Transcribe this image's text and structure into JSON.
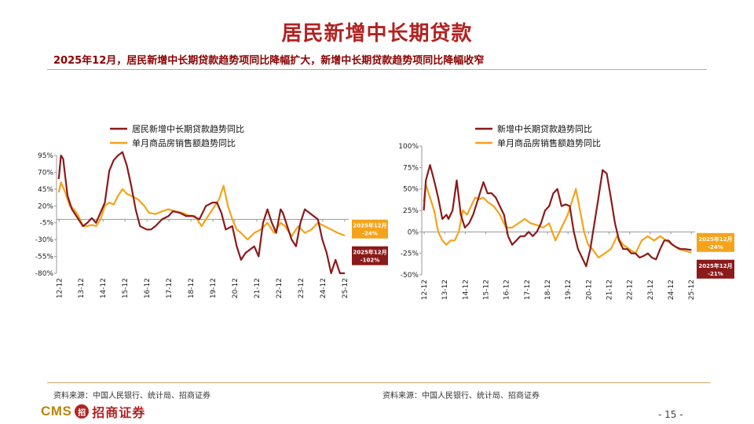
{
  "title": "居民新增中长期贷款",
  "subtitle": "2025年12月，居民新增中长期贷款趋势项同比降幅扩大，新增中长期贷款趋势项同比降幅收窄",
  "footer": {
    "source_left": "资料来源：中国人民银行、统计局、招商证券",
    "source_right": "资料来源：中国人民银行、统计局、招商证券",
    "logo_cms": "CMS",
    "logo_mark": "招",
    "logo_cn": "招商证券",
    "page_number": "- 15 -"
  },
  "colors": {
    "primary_series": "#8b1a1a",
    "secondary_series": "#f5a31a",
    "axis": "#999999"
  },
  "chart_data": [
    {
      "type": "line",
      "title": "",
      "xlabel": "",
      "ylabel": "",
      "ylim": [
        -80,
        95
      ],
      "yticks": [
        95,
        70,
        45,
        20,
        -5,
        -30,
        -55,
        -80
      ],
      "ytick_labels": [
        "95%",
        "70%",
        "45%",
        "20%",
        "-5%",
        "-30%",
        "-55%",
        "-80%"
      ],
      "xticks": [
        2012.917,
        2013.917,
        2014.917,
        2015.917,
        2016.917,
        2017.917,
        2018.917,
        2019.917,
        2020.917,
        2021.917,
        2022.917,
        2023.917,
        2024.917,
        2025.917
      ],
      "xtick_labels": [
        "12-12",
        "13-12",
        "14-12",
        "15-12",
        "16-12",
        "17-12",
        "18-12",
        "19-12",
        "20-12",
        "21-12",
        "22-12",
        "23-12",
        "24-12",
        "25-12"
      ],
      "grid": false,
      "legend_position": "top-left",
      "series": [
        {
          "name": "居民新增中长期贷款趋势同比",
          "color": "#8b1a1a",
          "x": [
            2012.9,
            2013.0,
            2013.1,
            2013.3,
            2013.5,
            2013.8,
            2014.0,
            2014.2,
            2014.4,
            2014.6,
            2014.8,
            2015.0,
            2015.2,
            2015.4,
            2015.6,
            2015.8,
            2016.0,
            2016.2,
            2016.4,
            2016.6,
            2016.9,
            2017.1,
            2017.3,
            2017.6,
            2017.9,
            2018.1,
            2018.4,
            2018.7,
            2019.0,
            2019.3,
            2019.6,
            2019.9,
            2020.1,
            2020.3,
            2020.5,
            2020.8,
            2021.0,
            2021.2,
            2021.4,
            2021.6,
            2021.8,
            2022.0,
            2022.2,
            2022.4,
            2022.6,
            2022.8,
            2023.0,
            2023.1,
            2023.3,
            2023.5,
            2023.7,
            2023.9,
            2024.1,
            2024.3,
            2024.5,
            2024.7,
            2024.9,
            2025.1,
            2025.3,
            2025.5,
            2025.7,
            2025.92
          ],
          "values": [
            60,
            95,
            90,
            35,
            15,
            0,
            -10,
            -5,
            2,
            -5,
            10,
            25,
            72,
            88,
            95,
            100,
            80,
            50,
            15,
            -10,
            -15,
            -15,
            -10,
            0,
            5,
            12,
            10,
            5,
            5,
            0,
            20,
            25,
            25,
            10,
            -15,
            -10,
            -40,
            -60,
            -50,
            -45,
            -40,
            -55,
            -5,
            15,
            -5,
            -20,
            15,
            10,
            -10,
            -30,
            -40,
            -5,
            15,
            10,
            5,
            0,
            -30,
            -50,
            -80,
            -60,
            -90,
            -102
          ]
        },
        {
          "name": "单月商品房销售额趋势同比",
          "color": "#f5a31a",
          "x": [
            2012.9,
            2013.0,
            2013.2,
            2013.4,
            2013.6,
            2013.8,
            2014.0,
            2014.2,
            2014.4,
            2014.6,
            2014.8,
            2015.0,
            2015.2,
            2015.4,
            2015.6,
            2015.8,
            2016.0,
            2016.2,
            2016.5,
            2016.8,
            2017.0,
            2017.3,
            2017.6,
            2017.9,
            2018.2,
            2018.5,
            2018.8,
            2019.1,
            2019.4,
            2019.7,
            2020.0,
            2020.2,
            2020.4,
            2020.6,
            2020.8,
            2021.0,
            2021.2,
            2021.5,
            2021.8,
            2022.1,
            2022.4,
            2022.7,
            2023.0,
            2023.2,
            2023.5,
            2023.8,
            2024.1,
            2024.4,
            2024.7,
            2025.0,
            2025.3,
            2025.6,
            2025.92
          ],
          "values": [
            40,
            55,
            40,
            20,
            15,
            5,
            -10,
            -10,
            -8,
            -10,
            0,
            20,
            25,
            22,
            35,
            45,
            38,
            35,
            30,
            20,
            10,
            8,
            12,
            15,
            12,
            10,
            6,
            5,
            -10,
            5,
            20,
            30,
            50,
            20,
            0,
            -15,
            -20,
            -30,
            -20,
            -15,
            -5,
            -20,
            -5,
            -10,
            -25,
            -10,
            -20,
            -15,
            -5,
            -10,
            -15,
            -20,
            -24
          ]
        }
      ],
      "annotations": [
        {
          "label": "2025年12月",
          "value_label": "-24%",
          "color": "#f5a31a"
        },
        {
          "label": "2025年12月",
          "value_label": "-102%",
          "color": "#8b1a1a"
        }
      ]
    },
    {
      "type": "line",
      "title": "",
      "xlabel": "",
      "ylabel": "",
      "ylim": [
        -50,
        100
      ],
      "yticks": [
        100,
        75,
        50,
        25,
        0,
        -25,
        -50
      ],
      "ytick_labels": [
        "100%",
        "75%",
        "50%",
        "25%",
        "0%",
        "-25%",
        "-50%"
      ],
      "xticks": [
        2012.917,
        2013.917,
        2014.917,
        2015.917,
        2016.917,
        2017.917,
        2018.917,
        2019.917,
        2020.917,
        2021.917,
        2022.917,
        2023.917,
        2024.917,
        2025.917
      ],
      "xtick_labels": [
        "12-12",
        "13-12",
        "14-12",
        "15-12",
        "16-12",
        "17-12",
        "18-12",
        "19-12",
        "20-12",
        "21-12",
        "22-12",
        "23-12",
        "24-12",
        "25-12"
      ],
      "grid": false,
      "legend_position": "top-left",
      "series": [
        {
          "name": "新增中长期贷款趋势同比",
          "color": "#8b1a1a",
          "x": [
            2012.9,
            2013.0,
            2013.2,
            2013.4,
            2013.6,
            2013.8,
            2014.0,
            2014.1,
            2014.3,
            2014.5,
            2014.7,
            2014.9,
            2015.1,
            2015.3,
            2015.5,
            2015.8,
            2016.0,
            2016.2,
            2016.4,
            2016.6,
            2016.8,
            2017.0,
            2017.2,
            2017.4,
            2017.6,
            2017.8,
            2018.0,
            2018.2,
            2018.4,
            2018.6,
            2018.8,
            2019.0,
            2019.2,
            2019.4,
            2019.6,
            2019.8,
            2020.0,
            2020.2,
            2020.4,
            2020.6,
            2020.8,
            2021.0,
            2021.2,
            2021.4,
            2021.6,
            2021.8,
            2022.0,
            2022.2,
            2022.4,
            2022.6,
            2022.8,
            2023.0,
            2023.2,
            2023.4,
            2023.6,
            2023.8,
            2024.0,
            2024.2,
            2024.4,
            2024.6,
            2024.8,
            2025.0,
            2025.2,
            2025.4,
            2025.6,
            2025.92
          ],
          "values": [
            25,
            60,
            78,
            60,
            40,
            15,
            20,
            15,
            25,
            60,
            20,
            5,
            10,
            20,
            35,
            58,
            45,
            45,
            40,
            30,
            20,
            -5,
            -15,
            -10,
            -5,
            -5,
            0,
            -5,
            0,
            10,
            25,
            30,
            45,
            50,
            30,
            32,
            30,
            0,
            -20,
            -30,
            -40,
            -20,
            10,
            40,
            72,
            68,
            40,
            10,
            -10,
            -20,
            -20,
            -25,
            -25,
            -30,
            -28,
            -25,
            -30,
            -32,
            -20,
            -10,
            -10,
            -15,
            -18,
            -20,
            -20,
            -21
          ]
        },
        {
          "name": "单月商品房销售额趋势同比",
          "color": "#f5a31a",
          "x": [
            2012.9,
            2013.0,
            2013.2,
            2013.4,
            2013.6,
            2013.8,
            2014.0,
            2014.2,
            2014.4,
            2014.6,
            2014.8,
            2015.0,
            2015.2,
            2015.4,
            2015.6,
            2015.8,
            2016.0,
            2016.3,
            2016.6,
            2016.9,
            2017.2,
            2017.5,
            2017.8,
            2018.1,
            2018.4,
            2018.7,
            2019.0,
            2019.3,
            2019.6,
            2019.9,
            2020.1,
            2020.3,
            2020.5,
            2020.7,
            2020.9,
            2021.1,
            2021.4,
            2021.7,
            2022.0,
            2022.3,
            2022.6,
            2022.9,
            2023.2,
            2023.5,
            2023.8,
            2024.1,
            2024.4,
            2024.7,
            2025.0,
            2025.3,
            2025.6,
            2025.92
          ],
          "values": [
            35,
            55,
            40,
            25,
            0,
            -10,
            -15,
            -10,
            -10,
            0,
            25,
            20,
            30,
            40,
            38,
            40,
            35,
            30,
            20,
            5,
            5,
            10,
            15,
            10,
            8,
            5,
            10,
            -10,
            5,
            20,
            35,
            50,
            25,
            0,
            -15,
            -20,
            -30,
            -25,
            -20,
            -5,
            -15,
            -20,
            -25,
            -10,
            -5,
            -10,
            -5,
            -10,
            -15,
            -20,
            -22,
            -24
          ]
        }
      ],
      "annotations": [
        {
          "label": "2025年12月",
          "value_label": "-24%",
          "color": "#f5a31a"
        },
        {
          "label": "2025年12月",
          "value_label": "-21%",
          "color": "#8b1a1a"
        }
      ]
    }
  ]
}
